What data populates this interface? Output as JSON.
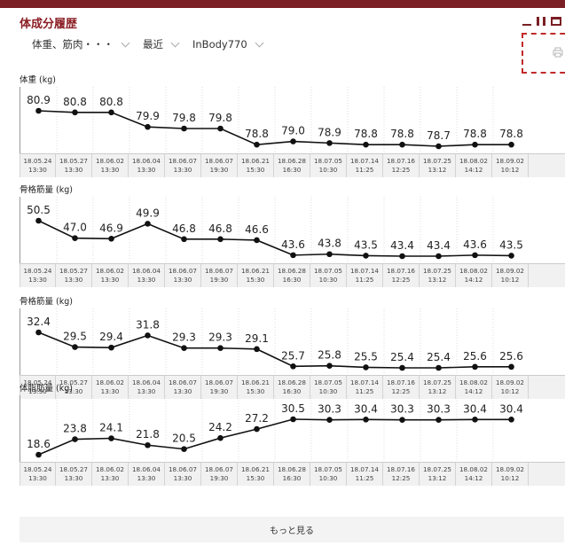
{
  "header": {
    "title": "体成分履歴",
    "print_icon": "printer-icon"
  },
  "filters": [
    {
      "label": "体重、筋肉・・・"
    },
    {
      "label": "最近"
    },
    {
      "label": "InBody770"
    }
  ],
  "colors": {
    "accent": "#7a1f24",
    "title": "#8b1e24",
    "line": "#111111",
    "date_row_bg": "#f1f1f1"
  },
  "dates": [
    {
      "d": "18.05.24",
      "t": "13:30"
    },
    {
      "d": "18.05.27",
      "t": "13:30"
    },
    {
      "d": "18.06.02",
      "t": "13:30"
    },
    {
      "d": "18.06.04",
      "t": "13:30"
    },
    {
      "d": "18.06.07",
      "t": "13:30"
    },
    {
      "d": "18.06.07",
      "t": "19:30"
    },
    {
      "d": "18.06.21",
      "t": "15:30"
    },
    {
      "d": "18.06.28",
      "t": "16:30"
    },
    {
      "d": "18.07.05",
      "t": "10:30"
    },
    {
      "d": "18.07.14",
      "t": "11:25"
    },
    {
      "d": "18.07.16",
      "t": "12:25"
    },
    {
      "d": "18.07.25",
      "t": "13:12"
    },
    {
      "d": "18.08.02",
      "t": "14:12"
    },
    {
      "d": "18.09.02",
      "t": "10:12"
    }
  ],
  "charts": [
    {
      "title": "体重 (kg)",
      "values": [
        80.9,
        80.8,
        80.8,
        79.9,
        79.8,
        79.8,
        78.8,
        79.0,
        78.9,
        78.8,
        78.8,
        78.7,
        78.8,
        78.8
      ]
    },
    {
      "title": "骨格筋量 (kg)",
      "values": [
        50.5,
        47.0,
        46.9,
        49.9,
        46.8,
        46.8,
        46.6,
        43.6,
        43.8,
        43.5,
        43.4,
        43.4,
        43.6,
        43.5
      ]
    },
    {
      "title": "骨格筋量 (kg)",
      "values": [
        32.4,
        29.5,
        29.4,
        31.8,
        29.3,
        29.3,
        29.1,
        25.7,
        25.8,
        25.5,
        25.4,
        25.4,
        25.6,
        25.6
      ]
    },
    {
      "title": "体脂肪量 (kg)",
      "values": [
        18.6,
        23.8,
        24.1,
        21.8,
        20.5,
        24.2,
        27.2,
        30.5,
        30.3,
        30.4,
        30.3,
        30.3,
        30.4,
        30.4
      ]
    }
  ],
  "more_button": {
    "label": "もっと見る"
  }
}
